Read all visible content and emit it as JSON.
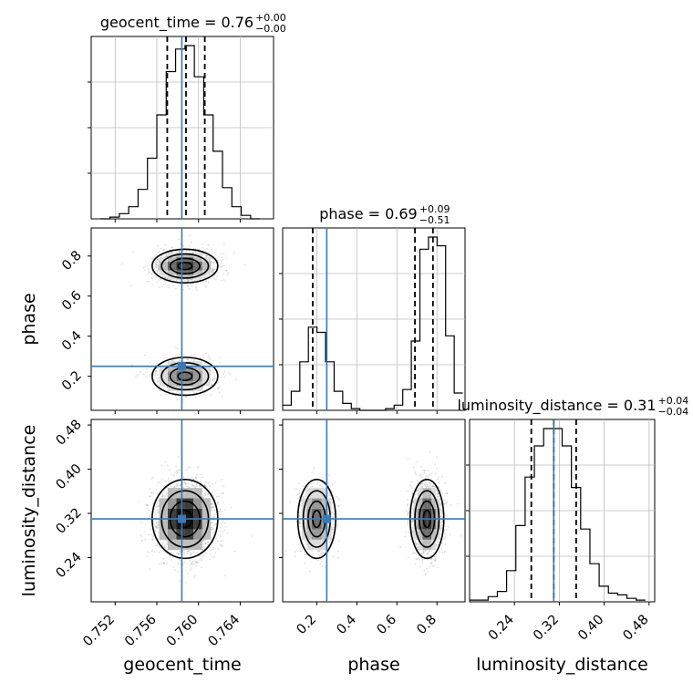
{
  "chart_data": {
    "type": "corner",
    "parameters": [
      "geocent_time",
      "phase",
      "luminosity_distance"
    ],
    "truths": {
      "geocent_time": 0.7584,
      "phase": 0.25,
      "luminosity_distance": 0.31
    },
    "colors": {
      "truth": "#3b78b4",
      "hist": "#000000",
      "grid": "#bdbdbd",
      "quantile": "#000000"
    },
    "grid": true,
    "titles": [
      {
        "param": "geocent_time",
        "text": "geocent_time = 0.76",
        "plus": "+0.00",
        "minus": "−0.00"
      },
      {
        "param": "phase",
        "text": "phase = 0.69",
        "plus": "+0.09",
        "minus": "−0.51"
      },
      {
        "param": "luminosity_distance",
        "text": "luminosity_distance = 0.31",
        "plus": "+0.04",
        "minus": "−0.04"
      }
    ],
    "axes": {
      "geocent_time": {
        "range": [
          0.7497,
          0.7672
        ],
        "ticks": [
          0.752,
          0.756,
          0.76,
          0.764
        ],
        "tick_labels": [
          "0.752",
          "0.756",
          "0.760",
          "0.764"
        ],
        "label": "geocent_time"
      },
      "phase": {
        "range": [
          0.03,
          0.94
        ],
        "ticks": [
          0.2,
          0.4,
          0.6,
          0.8
        ],
        "tick_labels": [
          "0.2",
          "0.4",
          "0.6",
          "0.8"
        ],
        "label": "phase"
      },
      "luminosity_distance": {
        "range": [
          0.16,
          0.49
        ],
        "ticks": [
          0.24,
          0.32,
          0.4,
          0.48
        ],
        "tick_labels": [
          "0.24",
          "0.32",
          "0.40",
          "0.48"
        ],
        "label": "luminosity_distance"
      }
    },
    "histograms": {
      "geocent_time": {
        "bin_edges": [
          0.7506,
          0.7515,
          0.7524,
          0.7533,
          0.7542,
          0.7551,
          0.756,
          0.7569,
          0.7578,
          0.7587,
          0.7596,
          0.7605,
          0.7614,
          0.7623,
          0.7632,
          0.7641,
          0.765,
          0.7659
        ],
        "counts": [
          0,
          0.01,
          0.03,
          0.07,
          0.17,
          0.35,
          0.6,
          0.85,
          0.98,
          1.0,
          0.82,
          0.6,
          0.39,
          0.18,
          0.07,
          0.02,
          0.0
        ],
        "quantiles": [
          0.757,
          0.7588,
          0.7606
        ]
      },
      "phase": {
        "bin_edges": [
          0.03,
          0.0728,
          0.1156,
          0.1584,
          0.2012,
          0.244,
          0.2868,
          0.3296,
          0.3724,
          0.4152,
          0.458,
          0.5008,
          0.5436,
          0.5864,
          0.6292,
          0.672,
          0.7148,
          0.7576,
          0.8004,
          0.8432,
          0.886,
          0.9288
        ],
        "counts": [
          0.03,
          0.11,
          0.28,
          0.48,
          0.45,
          0.28,
          0.11,
          0.04,
          0.01,
          0.0,
          0.0,
          0.0,
          0.01,
          0.03,
          0.12,
          0.4,
          0.93,
          1.0,
          0.95,
          0.43,
          0.1
        ],
        "quantiles": [
          0.18,
          0.69,
          0.78
        ]
      },
      "luminosity_distance": {
        "bin_edges": [
          0.16,
          0.1765,
          0.193,
          0.2095,
          0.226,
          0.2425,
          0.259,
          0.2755,
          0.292,
          0.3085,
          0.325,
          0.3415,
          0.358,
          0.3745,
          0.391,
          0.4075,
          0.424,
          0.4405,
          0.457,
          0.4735
        ],
        "counts": [
          0.01,
          0.01,
          0.03,
          0.06,
          0.18,
          0.44,
          0.72,
          0.9,
          1.0,
          1.0,
          0.9,
          0.66,
          0.42,
          0.22,
          0.09,
          0.05,
          0.04,
          0.02,
          0.01
        ],
        "quantiles": [
          0.27,
          0.31,
          0.35
        ]
      }
    },
    "pair_panels": [
      {
        "x": "geocent_time",
        "y": "phase"
      },
      {
        "x": "geocent_time",
        "y": "luminosity_distance"
      },
      {
        "x": "phase",
        "y": "luminosity_distance"
      }
    ],
    "modes": {
      "phase": [
        {
          "center": 0.2,
          "sigma": 0.045,
          "weight": 0.38
        },
        {
          "center": 0.75,
          "sigma": 0.04,
          "weight": 0.62
        }
      ],
      "geocent_time": {
        "center": 0.7587,
        "sigma": 0.0015
      },
      "luminosity_distance": {
        "center": 0.31,
        "sigma": 0.034
      }
    }
  }
}
